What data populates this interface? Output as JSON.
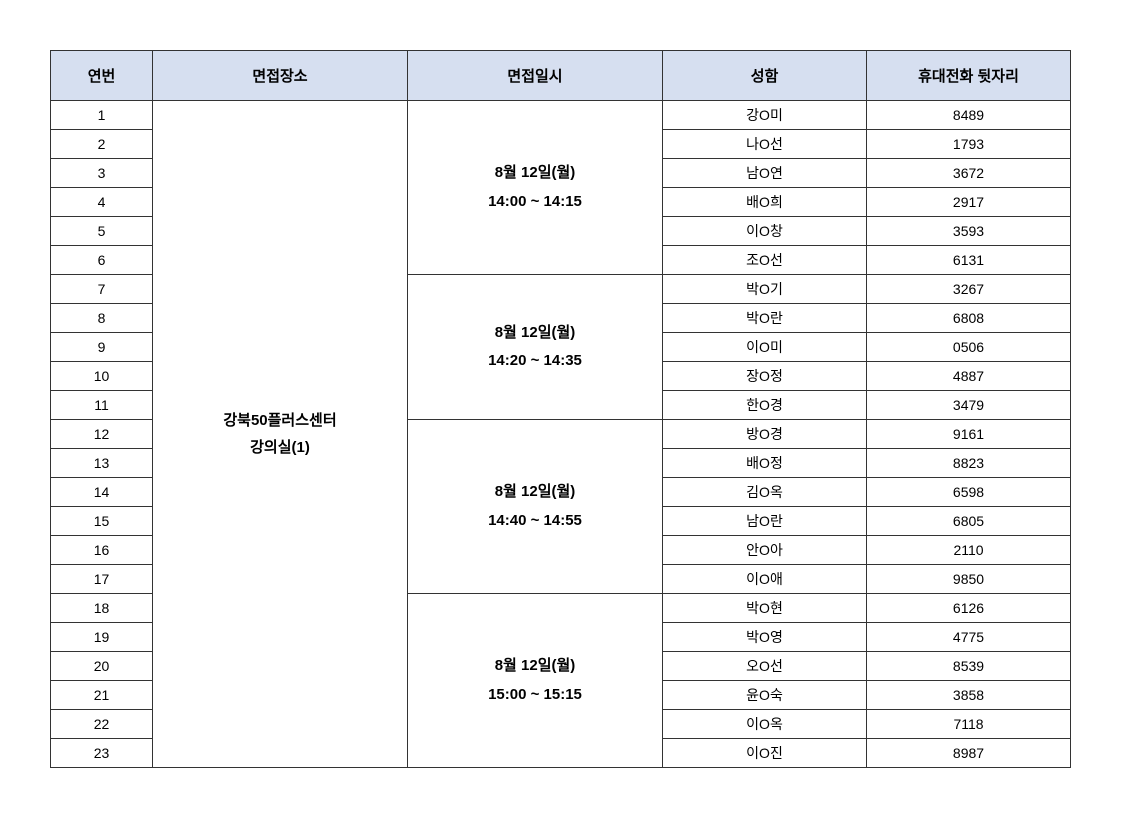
{
  "headers": {
    "col1": "연번",
    "col2": "면접장소",
    "col3": "면접일시",
    "col4": "성함",
    "col5": "휴대전화 뒷자리"
  },
  "location": {
    "line1": "강북50플러스센터",
    "line2": "강의실(1)"
  },
  "slots": [
    {
      "date": "8월 12일(월)",
      "time": "14:00 ~ 14:15"
    },
    {
      "date": "8월 12일(월)",
      "time": "14:20 ~ 14:35"
    },
    {
      "date": "8월 12일(월)",
      "time": "14:40 ~ 14:55"
    },
    {
      "date": "8월 12일(월)",
      "time": "15:00 ~ 15:15"
    }
  ],
  "rows": [
    {
      "num": "1",
      "name": "강O미",
      "phone": "8489"
    },
    {
      "num": "2",
      "name": "나O선",
      "phone": "1793"
    },
    {
      "num": "3",
      "name": "남O연",
      "phone": "3672"
    },
    {
      "num": "4",
      "name": "배O희",
      "phone": "2917"
    },
    {
      "num": "5",
      "name": "이O창",
      "phone": "3593"
    },
    {
      "num": "6",
      "name": "조O선",
      "phone": "6131"
    },
    {
      "num": "7",
      "name": "박O기",
      "phone": "3267"
    },
    {
      "num": "8",
      "name": "박O란",
      "phone": "6808"
    },
    {
      "num": "9",
      "name": "이O미",
      "phone": "0506"
    },
    {
      "num": "10",
      "name": "장O정",
      "phone": "4887"
    },
    {
      "num": "11",
      "name": "한O경",
      "phone": "3479"
    },
    {
      "num": "12",
      "name": "방O경",
      "phone": "9161"
    },
    {
      "num": "13",
      "name": "배O정",
      "phone": "8823"
    },
    {
      "num": "14",
      "name": "김O옥",
      "phone": "6598"
    },
    {
      "num": "15",
      "name": "남O란",
      "phone": "6805"
    },
    {
      "num": "16",
      "name": "안O아",
      "phone": "2110"
    },
    {
      "num": "17",
      "name": "이O애",
      "phone": "9850"
    },
    {
      "num": "18",
      "name": "박O현",
      "phone": "6126"
    },
    {
      "num": "19",
      "name": "박O영",
      "phone": "4775"
    },
    {
      "num": "20",
      "name": "오O선",
      "phone": "8539"
    },
    {
      "num": "21",
      "name": "윤O숙",
      "phone": "3858"
    },
    {
      "num": "22",
      "name": "이O옥",
      "phone": "7118"
    },
    {
      "num": "23",
      "name": "이O진",
      "phone": "8987"
    }
  ],
  "style": {
    "header_bg": "#d6dff0",
    "border_color": "#333333",
    "bg_color": "#ffffff",
    "text_color": "#000000"
  }
}
